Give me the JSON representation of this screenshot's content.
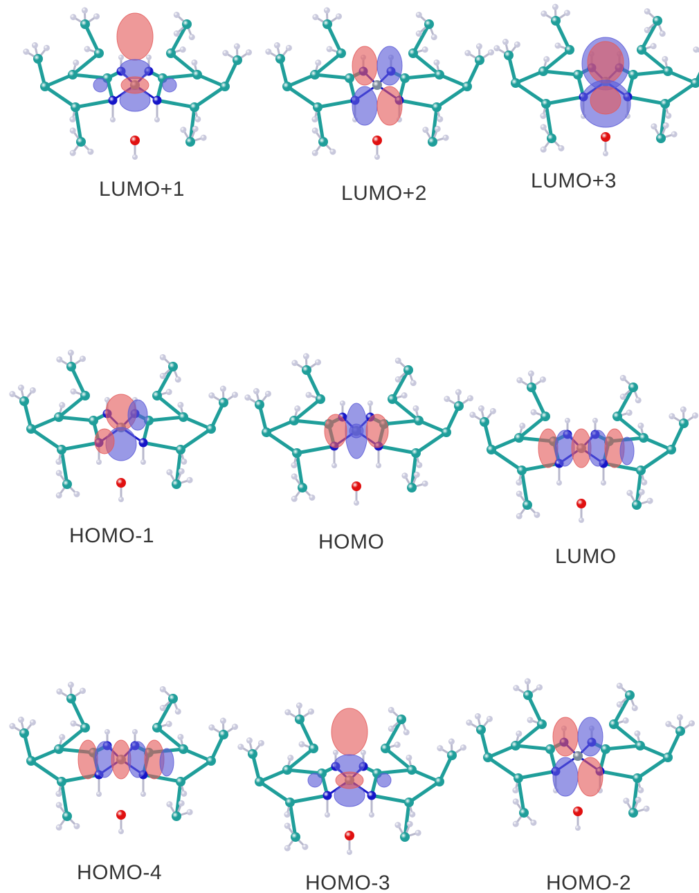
{
  "figure": {
    "orbitals": [
      {
        "label": "LUMO+1",
        "lobe_pattern": "axial-dz2"
      },
      {
        "label": "LUMO+2",
        "lobe_pattern": "four-lobe"
      },
      {
        "label": "LUMO+3",
        "lobe_pattern": "large-axial"
      },
      {
        "label": "HOMO-1",
        "lobe_pattern": "vertical-dumbbell"
      },
      {
        "label": "HOMO",
        "lobe_pattern": "cross-four-lobe"
      },
      {
        "label": "LUMO",
        "lobe_pattern": "delocalized-ring"
      },
      {
        "label": "HOMO-4",
        "lobe_pattern": "delocalized-ring"
      },
      {
        "label": "HOMO-3",
        "lobe_pattern": "axial-dz2"
      },
      {
        "label": "HOMO-2",
        "lobe_pattern": "four-lobe"
      }
    ],
    "colors": {
      "positive_lobe": "#e35a5a",
      "negative_lobe": "#5a5ad6",
      "carbon_atom": "#1f9e9a",
      "nitrogen_atom": "#1515c8",
      "hydrogen_atom": "#c8c8dc",
      "oxygen_atom": "#e01010",
      "metal_atom": "#7a8a9a",
      "label_text": "#333333"
    }
  }
}
